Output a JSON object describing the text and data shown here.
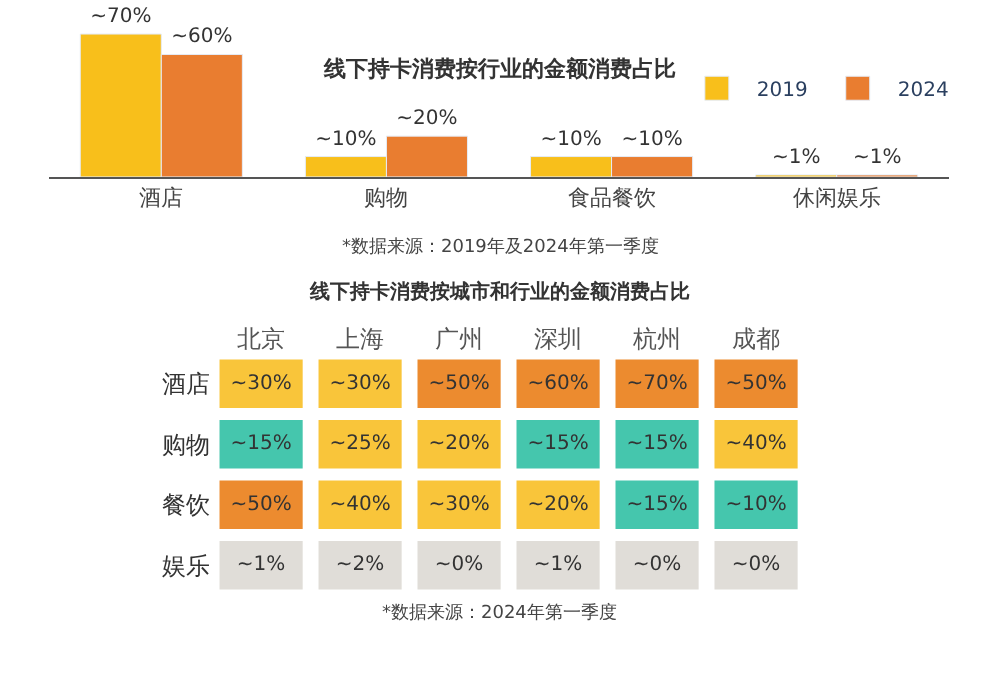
{
  "chart_data": [
    {
      "type": "bar",
      "title": "线下持卡消费按行业的金额消费占比",
      "categories": [
        "酒店",
        "购物",
        "食品餐饮",
        "休闲娱乐"
      ],
      "series": [
        {
          "name": "2019",
          "color": "#f8bf1b",
          "values": [
            70,
            10,
            10,
            1
          ],
          "value_labels": [
            "~70%",
            "~10%",
            "~10%",
            "~1%"
          ]
        },
        {
          "name": "2024",
          "color": "#e97d30",
          "values": [
            60,
            20,
            10,
            1
          ],
          "value_labels": [
            "~60%",
            "~20%",
            "~10%",
            "~1%"
          ]
        }
      ],
      "tick_labels": "x",
      "legend": "top right",
      "annotations": [
        "*数据来源：2019年及2024年第一季度"
      ]
    },
    {
      "type": "heatmap",
      "title": "线下持卡消费按城市和行业的金额消费占比",
      "categories": [
        "北京",
        "上海",
        "广州",
        "深圳",
        "杭州",
        "成都"
      ],
      "y_categories": [
        "酒店",
        "购物",
        "餐饮",
        "娱乐"
      ],
      "cells": [
        [
          30,
          30,
          50,
          60,
          70,
          50
        ],
        [
          15,
          25,
          20,
          15,
          15,
          40
        ],
        [
          50,
          40,
          30,
          20,
          15,
          10
        ],
        [
          1,
          2,
          0,
          1,
          0,
          0
        ]
      ],
      "cell_labels": [
        [
          "~30%",
          "~30%",
          "~50%",
          "~60%",
          "~70%",
          "~50%"
        ],
        [
          "~15%",
          "~25%",
          "~20%",
          "~15%",
          "~15%",
          "~40%"
        ],
        [
          "~50%",
          "~40%",
          "~30%",
          "~20%",
          "~15%",
          "~10%"
        ],
        [
          "~1%",
          "~2%",
          "~0%",
          "~1%",
          "~0%",
          "~0%"
        ]
      ],
      "colors": [
        [
          "#f9c53a",
          "#f9c53a",
          "#ec8b2f",
          "#ec8b2f",
          "#ec8b2f",
          "#ec8b2f"
        ],
        [
          "#45c6ad",
          "#f9c53a",
          "#f9c53a",
          "#45c6ad",
          "#45c6ad",
          "#f9c53a"
        ],
        [
          "#ec8b2f",
          "#f9c53a",
          "#f9c53a",
          "#f9c53a",
          "#45c6ad",
          "#45c6ad"
        ],
        [
          "#e0ddd8",
          "#e0ddd8",
          "#e0ddd8",
          "#e0ddd8",
          "#e0ddd8",
          "#e0ddd8"
        ]
      ],
      "annotations": [
        "*数据来源：2024年第一季度"
      ]
    }
  ]
}
